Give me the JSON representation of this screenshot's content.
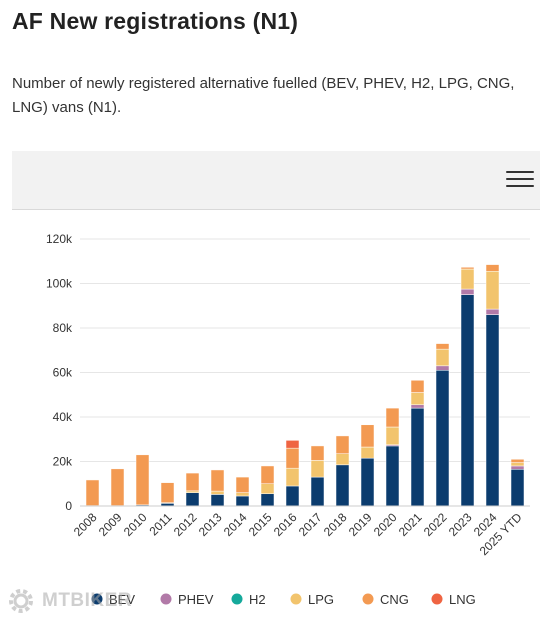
{
  "page": {
    "title": "AF New registrations (N1)",
    "description": "Number of newly registered alternative fuelled (BEV, PHEV, H2, LPG, CNG, LNG) vans (N1)."
  },
  "toolbar": {
    "menu_icon": "hamburger-menu-icon"
  },
  "watermark": {
    "text": "MTBIKER",
    "icon": "gear-icon"
  },
  "chart_data": {
    "type": "bar",
    "stacked": true,
    "categories": [
      "2008",
      "2009",
      "2010",
      "2011",
      "2012",
      "2013",
      "2014",
      "2015",
      "2016",
      "2017",
      "2018",
      "2019",
      "2020",
      "2021",
      "2022",
      "2023",
      "2024",
      "2025 YTD"
    ],
    "ylim": [
      0,
      120000
    ],
    "yticks": [
      0,
      20000,
      40000,
      60000,
      80000,
      100000,
      120000
    ],
    "ytick_labels": [
      "0",
      "20k",
      "40k",
      "60k",
      "80k",
      "100k",
      "120k"
    ],
    "grid": true,
    "legend_position": "bottom",
    "series": [
      {
        "name": "BEV",
        "color": "#0b3c6e",
        "values": [
          200,
          200,
          500,
          1200,
          6000,
          5200,
          4500,
          5500,
          9000,
          13000,
          18500,
          21500,
          27000,
          44000,
          61000,
          95000,
          86000,
          16500
        ]
      },
      {
        "name": "PHEV",
        "color": "#b27aa8",
        "values": [
          0,
          0,
          0,
          0,
          0,
          0,
          0,
          0,
          0,
          0,
          0,
          0,
          500,
          1500,
          2000,
          2500,
          2500,
          1500
        ]
      },
      {
        "name": "H2",
        "color": "#15a99b",
        "values": [
          0,
          0,
          0,
          0,
          0,
          0,
          0,
          0,
          0,
          0,
          0,
          0,
          0,
          0,
          0,
          0,
          0,
          0
        ]
      },
      {
        "name": "LPG",
        "color": "#f2c46d",
        "values": [
          0,
          0,
          0,
          300,
          800,
          1500,
          1500,
          4500,
          8000,
          7500,
          5000,
          5000,
          8000,
          5500,
          7500,
          9000,
          17000,
          1500
        ]
      },
      {
        "name": "CNG",
        "color": "#f39a52",
        "values": [
          11500,
          16500,
          22500,
          9000,
          8000,
          9500,
          7000,
          8000,
          9000,
          6500,
          8000,
          10000,
          8500,
          5500,
          2500,
          800,
          3000,
          1500
        ]
      },
      {
        "name": "LNG",
        "color": "#ef6442",
        "values": [
          0,
          0,
          0,
          0,
          0,
          0,
          0,
          0,
          3500,
          0,
          0,
          0,
          0,
          0,
          0,
          0,
          0,
          0
        ]
      }
    ]
  }
}
